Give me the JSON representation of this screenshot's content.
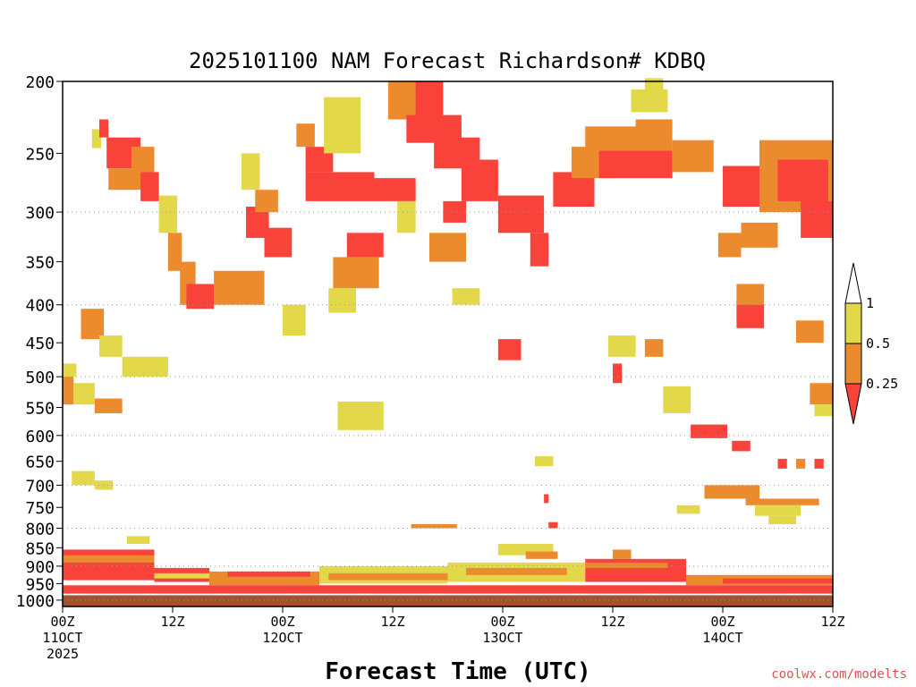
{
  "chart_data": {
    "type": "heatmap",
    "title": "2025101100 NAM Forecast Richardson# KDBQ",
    "xlabel": "Forecast Time (UTC)",
    "ylabel": "",
    "y_scale": "pressure_log",
    "ylim": [
      1020,
      200
    ],
    "xlim_hours": [
      0,
      84
    ],
    "pressure_ticks": [
      200,
      250,
      300,
      350,
      400,
      450,
      500,
      550,
      600,
      650,
      700,
      750,
      800,
      850,
      900,
      950,
      1000
    ],
    "gridlines_at": [
      300,
      400,
      500,
      600,
      700,
      800,
      900,
      1000
    ],
    "x_ticks": [
      {
        "hour": 0,
        "lines": [
          "00Z",
          "11OCT",
          "2025"
        ]
      },
      {
        "hour": 12,
        "lines": [
          "12Z"
        ]
      },
      {
        "hour": 24,
        "lines": [
          "00Z",
          "12OCT"
        ]
      },
      {
        "hour": 36,
        "lines": [
          "12Z"
        ]
      },
      {
        "hour": 48,
        "lines": [
          "00Z",
          "13OCT"
        ]
      },
      {
        "hour": 60,
        "lines": [
          "12Z"
        ]
      },
      {
        "hour": 72,
        "lines": [
          "00Z",
          "14OCT"
        ]
      },
      {
        "hour": 84,
        "lines": [
          "12Z"
        ]
      }
    ],
    "legend": {
      "placement": "right",
      "levels": [
        "1",
        "0.5",
        "0.25"
      ],
      "bins": [
        {
          "range": "> 1",
          "color": "#ffffff"
        },
        {
          "range": "0.5 – 1",
          "color": "#e3d84a"
        },
        {
          "range": "0.25 – 0.5",
          "color": "#ec8a2e"
        },
        {
          "range": "< 0.25",
          "color": "#f9423a"
        }
      ]
    },
    "ground_color": "#a0522d",
    "cells": [
      {
        "h0": 3.2,
        "h1": 4.2,
        "p0": 232,
        "p1": 246,
        "v": "yellow"
      },
      {
        "h0": 4.0,
        "h1": 5.0,
        "p0": 225,
        "p1": 238,
        "v": "red"
      },
      {
        "h0": 4.8,
        "h1": 8.5,
        "p0": 238,
        "p1": 262,
        "v": "red"
      },
      {
        "h0": 5.0,
        "h1": 10.0,
        "p0": 262,
        "p1": 280,
        "v": "orange"
      },
      {
        "h0": 7.5,
        "h1": 10.0,
        "p0": 245,
        "p1": 268,
        "v": "orange"
      },
      {
        "h0": 8.5,
        "h1": 10.5,
        "p0": 265,
        "p1": 290,
        "v": "red"
      },
      {
        "h0": 10.5,
        "h1": 12.5,
        "p0": 285,
        "p1": 320,
        "v": "yellow"
      },
      {
        "h0": 11.5,
        "h1": 13.0,
        "p0": 320,
        "p1": 360,
        "v": "orange"
      },
      {
        "h0": 12.8,
        "h1": 14.5,
        "p0": 350,
        "p1": 400,
        "v": "orange"
      },
      {
        "h0": 13.5,
        "h1": 16.5,
        "p0": 375,
        "p1": 405,
        "v": "red"
      },
      {
        "h0": 16.5,
        "h1": 22.0,
        "p0": 360,
        "p1": 400,
        "v": "orange"
      },
      {
        "h0": 20.0,
        "h1": 22.5,
        "p0": 295,
        "p1": 325,
        "v": "red"
      },
      {
        "h0": 22.0,
        "h1": 25.0,
        "p0": 315,
        "p1": 345,
        "v": "red"
      },
      {
        "h0": 21.0,
        "h1": 23.5,
        "p0": 280,
        "p1": 300,
        "v": "orange"
      },
      {
        "h0": 19.5,
        "h1": 21.5,
        "p0": 250,
        "p1": 280,
        "v": "yellow"
      },
      {
        "h0": 25.5,
        "h1": 27.5,
        "p0": 228,
        "p1": 245,
        "v": "orange"
      },
      {
        "h0": 26.5,
        "h1": 29.5,
        "p0": 245,
        "p1": 265,
        "v": "red"
      },
      {
        "h0": 26.5,
        "h1": 34.0,
        "p0": 265,
        "p1": 290,
        "v": "red"
      },
      {
        "h0": 34.0,
        "h1": 38.5,
        "p0": 270,
        "p1": 290,
        "v": "red"
      },
      {
        "h0": 36.5,
        "h1": 41.5,
        "p0": 200,
        "p1": 225,
        "v": "red"
      },
      {
        "h0": 35.5,
        "h1": 38.5,
        "p0": 200,
        "p1": 225,
        "v": "orange"
      },
      {
        "h0": 37.5,
        "h1": 43.5,
        "p0": 222,
        "p1": 242,
        "v": "red"
      },
      {
        "h0": 40.5,
        "h1": 45.5,
        "p0": 238,
        "p1": 262,
        "v": "red"
      },
      {
        "h0": 43.5,
        "h1": 47.5,
        "p0": 255,
        "p1": 290,
        "v": "red"
      },
      {
        "h0": 47.5,
        "h1": 52.5,
        "p0": 285,
        "p1": 320,
        "v": "red"
      },
      {
        "h0": 51.0,
        "h1": 53.0,
        "p0": 320,
        "p1": 355,
        "v": "red"
      },
      {
        "h0": 53.5,
        "h1": 58.0,
        "p0": 265,
        "p1": 295,
        "v": "red"
      },
      {
        "h0": 55.5,
        "h1": 60.0,
        "p0": 245,
        "p1": 270,
        "v": "orange"
      },
      {
        "h0": 57.0,
        "h1": 64.0,
        "p0": 230,
        "p1": 250,
        "v": "orange"
      },
      {
        "h0": 58.5,
        "h1": 66.5,
        "p0": 248,
        "p1": 270,
        "v": "red"
      },
      {
        "h0": 62.5,
        "h1": 66.5,
        "p0": 225,
        "p1": 248,
        "v": "orange"
      },
      {
        "h0": 66.5,
        "h1": 71.0,
        "p0": 240,
        "p1": 265,
        "v": "orange"
      },
      {
        "h0": 72.0,
        "h1": 76.0,
        "p0": 260,
        "p1": 295,
        "v": "red"
      },
      {
        "h0": 76.0,
        "h1": 84.0,
        "p0": 240,
        "p1": 300,
        "v": "orange"
      },
      {
        "h0": 78.0,
        "h1": 83.5,
        "p0": 255,
        "p1": 290,
        "v": "red"
      },
      {
        "h0": 80.5,
        "h1": 84.0,
        "p0": 290,
        "p1": 325,
        "v": "red"
      },
      {
        "h0": 71.5,
        "h1": 74.0,
        "p0": 320,
        "p1": 345,
        "v": "orange"
      },
      {
        "h0": 74.0,
        "h1": 78.0,
        "p0": 310,
        "p1": 335,
        "v": "orange"
      },
      {
        "h0": 62.0,
        "h1": 66.0,
        "p0": 205,
        "p1": 220,
        "v": "yellow"
      },
      {
        "h0": 63.5,
        "h1": 65.5,
        "p0": 198,
        "p1": 210,
        "v": "yellow"
      },
      {
        "h0": 28.5,
        "h1": 32.5,
        "p0": 210,
        "p1": 250,
        "v": "yellow"
      },
      {
        "h0": 31.0,
        "h1": 35.0,
        "p0": 320,
        "p1": 345,
        "v": "red"
      },
      {
        "h0": 29.5,
        "h1": 34.5,
        "p0": 345,
        "p1": 380,
        "v": "orange"
      },
      {
        "h0": 29.0,
        "h1": 32.0,
        "p0": 380,
        "p1": 410,
        "v": "yellow"
      },
      {
        "h0": 40.0,
        "h1": 44.0,
        "p0": 320,
        "p1": 350,
        "v": "orange"
      },
      {
        "h0": 41.5,
        "h1": 44.0,
        "p0": 290,
        "p1": 310,
        "v": "red"
      },
      {
        "h0": 36.5,
        "h1": 38.5,
        "p0": 290,
        "p1": 320,
        "v": "yellow"
      },
      {
        "h0": 42.5,
        "h1": 45.5,
        "p0": 380,
        "p1": 400,
        "v": "yellow"
      },
      {
        "h0": 24.0,
        "h1": 26.5,
        "p0": 400,
        "p1": 440,
        "v": "yellow"
      },
      {
        "h0": 2.0,
        "h1": 4.5,
        "p0": 405,
        "p1": 445,
        "v": "orange"
      },
      {
        "h0": 4.0,
        "h1": 6.5,
        "p0": 440,
        "p1": 470,
        "v": "yellow"
      },
      {
        "h0": 6.5,
        "h1": 11.5,
        "p0": 470,
        "p1": 500,
        "v": "yellow"
      },
      {
        "h0": 0.0,
        "h1": 1.5,
        "p0": 480,
        "p1": 500,
        "v": "yellow"
      },
      {
        "h0": 0.0,
        "h1": 1.2,
        "p0": 500,
        "p1": 545,
        "v": "orange"
      },
      {
        "h0": 1.2,
        "h1": 3.5,
        "p0": 510,
        "p1": 545,
        "v": "yellow"
      },
      {
        "h0": 3.5,
        "h1": 6.5,
        "p0": 535,
        "p1": 560,
        "v": "orange"
      },
      {
        "h0": 30.0,
        "h1": 35.0,
        "p0": 540,
        "p1": 590,
        "v": "yellow"
      },
      {
        "h0": 47.5,
        "h1": 50.0,
        "p0": 445,
        "p1": 475,
        "v": "red"
      },
      {
        "h0": 59.5,
        "h1": 62.5,
        "p0": 440,
        "p1": 470,
        "v": "yellow"
      },
      {
        "h0": 60.0,
        "h1": 61.0,
        "p0": 480,
        "p1": 510,
        "v": "red"
      },
      {
        "h0": 63.5,
        "h1": 65.5,
        "p0": 445,
        "p1": 470,
        "v": "orange"
      },
      {
        "h0": 65.5,
        "h1": 68.5,
        "p0": 515,
        "p1": 560,
        "v": "yellow"
      },
      {
        "h0": 68.5,
        "h1": 72.5,
        "p0": 580,
        "p1": 605,
        "v": "red"
      },
      {
        "h0": 73.0,
        "h1": 75.0,
        "p0": 610,
        "p1": 630,
        "v": "red"
      },
      {
        "h0": 73.5,
        "h1": 76.5,
        "p0": 395,
        "p1": 430,
        "v": "red"
      },
      {
        "h0": 73.5,
        "h1": 76.5,
        "p0": 375,
        "p1": 400,
        "v": "orange"
      },
      {
        "h0": 80.0,
        "h1": 83.0,
        "p0": 420,
        "p1": 450,
        "v": "orange"
      },
      {
        "h0": 81.5,
        "h1": 84.0,
        "p0": 510,
        "p1": 545,
        "v": "orange"
      },
      {
        "h0": 82.0,
        "h1": 84.0,
        "p0": 545,
        "p1": 565,
        "v": "yellow"
      },
      {
        "h0": 78.0,
        "h1": 79.0,
        "p0": 645,
        "p1": 665,
        "v": "red"
      },
      {
        "h0": 80.0,
        "h1": 81.0,
        "p0": 645,
        "p1": 665,
        "v": "orange"
      },
      {
        "h0": 82.0,
        "h1": 83.0,
        "p0": 645,
        "p1": 665,
        "v": "red"
      },
      {
        "h0": 51.5,
        "h1": 53.5,
        "p0": 640,
        "p1": 660,
        "v": "yellow"
      },
      {
        "h0": 70.0,
        "h1": 76.0,
        "p0": 700,
        "p1": 730,
        "v": "orange"
      },
      {
        "h0": 74.5,
        "h1": 82.5,
        "p0": 730,
        "p1": 745,
        "v": "orange"
      },
      {
        "h0": 75.5,
        "h1": 80.5,
        "p0": 745,
        "p1": 770,
        "v": "yellow"
      },
      {
        "h0": 77.0,
        "h1": 80.0,
        "p0": 770,
        "p1": 790,
        "v": "yellow"
      },
      {
        "h0": 67.0,
        "h1": 69.5,
        "p0": 745,
        "p1": 765,
        "v": "yellow"
      },
      {
        "h0": 1.0,
        "h1": 3.5,
        "p0": 670,
        "p1": 700,
        "v": "yellow"
      },
      {
        "h0": 3.5,
        "h1": 5.5,
        "p0": 690,
        "p1": 710,
        "v": "yellow"
      },
      {
        "h0": 52.5,
        "h1": 53.0,
        "p0": 720,
        "p1": 740,
        "v": "red"
      },
      {
        "h0": 53.0,
        "h1": 54.0,
        "p0": 785,
        "p1": 800,
        "v": "red"
      },
      {
        "h0": 38.0,
        "h1": 43.0,
        "p0": 790,
        "p1": 800,
        "v": "orange"
      },
      {
        "h0": 7.0,
        "h1": 9.5,
        "p0": 820,
        "p1": 840,
        "v": "yellow"
      },
      {
        "h0": 47.5,
        "h1": 53.5,
        "p0": 840,
        "p1": 870,
        "v": "yellow"
      },
      {
        "h0": 50.5,
        "h1": 54.0,
        "p0": 860,
        "p1": 880,
        "v": "orange"
      },
      {
        "h0": 60.0,
        "h1": 62.0,
        "p0": 855,
        "p1": 880,
        "v": "orange"
      },
      {
        "h0": 0.0,
        "h1": 10.0,
        "p0": 855,
        "p1": 940,
        "v": "red"
      },
      {
        "h0": 0.0,
        "h1": 10.0,
        "p0": 870,
        "p1": 890,
        "v": "orange"
      },
      {
        "h0": 10.0,
        "h1": 16.0,
        "p0": 905,
        "p1": 945,
        "v": "red"
      },
      {
        "h0": 10.0,
        "h1": 16.0,
        "p0": 920,
        "p1": 935,
        "v": "yellow"
      },
      {
        "h0": 16.0,
        "h1": 28.0,
        "p0": 915,
        "p1": 955,
        "v": "orange"
      },
      {
        "h0": 18.0,
        "h1": 27.0,
        "p0": 915,
        "p1": 930,
        "v": "red"
      },
      {
        "h0": 28.0,
        "h1": 42.0,
        "p0": 900,
        "p1": 950,
        "v": "yellow"
      },
      {
        "h0": 29.0,
        "h1": 42.0,
        "p0": 920,
        "p1": 940,
        "v": "orange"
      },
      {
        "h0": 42.0,
        "h1": 57.0,
        "p0": 890,
        "p1": 945,
        "v": "yellow"
      },
      {
        "h0": 44.0,
        "h1": 55.0,
        "p0": 905,
        "p1": 925,
        "v": "orange"
      },
      {
        "h0": 57.0,
        "h1": 68.0,
        "p0": 880,
        "p1": 945,
        "v": "red"
      },
      {
        "h0": 57.0,
        "h1": 66.0,
        "p0": 890,
        "p1": 905,
        "v": "orange"
      },
      {
        "h0": 68.0,
        "h1": 84.0,
        "p0": 925,
        "p1": 955,
        "v": "orange"
      },
      {
        "h0": 72.0,
        "h1": 84.0,
        "p0": 935,
        "p1": 950,
        "v": "red"
      },
      {
        "h0": 0.0,
        "h1": 84.0,
        "p0": 955,
        "p1": 980,
        "v": "red"
      }
    ]
  },
  "footer": {
    "credit": "coolwx.com/modelts"
  }
}
